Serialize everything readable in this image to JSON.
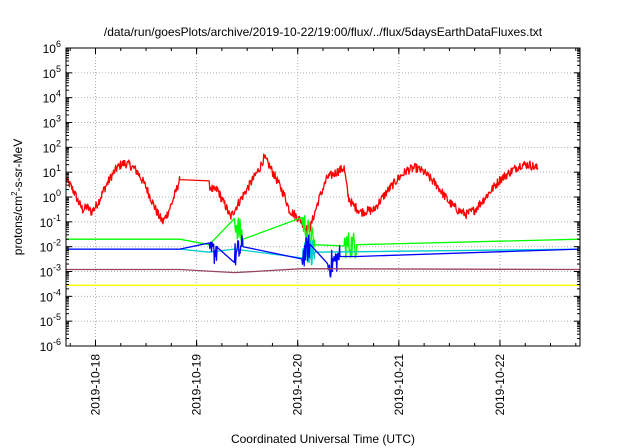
{
  "chart_data": {
    "type": "line",
    "title": "/data/run/goesPlots/archive/2019-10-22/19:00/flux/../flux/5daysEarthDataFluxes.txt",
    "xlabel": "Coordinated Universal Time (UTC)",
    "ylabel_base": "protons/cm",
    "ylabel_sup": "2",
    "ylabel_rest": "-s-sr-MeV",
    "y_scale": "log",
    "ylim": [
      1e-06,
      1000000.0
    ],
    "y_ticks": [
      {
        "value": 1000000.0,
        "base": "10",
        "exp": "6"
      },
      {
        "value": 100000.0,
        "base": "10",
        "exp": "5"
      },
      {
        "value": 10000.0,
        "base": "10",
        "exp": "4"
      },
      {
        "value": 1000.0,
        "base": "10",
        "exp": "3"
      },
      {
        "value": 100.0,
        "base": "10",
        "exp": "2"
      },
      {
        "value": 10.0,
        "base": "10",
        "exp": "1"
      },
      {
        "value": 1,
        "base": "10",
        "exp": "0"
      },
      {
        "value": 0.1,
        "base": "10",
        "exp": "-1"
      },
      {
        "value": 0.01,
        "base": "10",
        "exp": "-2"
      },
      {
        "value": 0.001,
        "base": "10",
        "exp": "-3"
      },
      {
        "value": 0.0001,
        "base": "10",
        "exp": "-4"
      },
      {
        "value": 1e-05,
        "base": "10",
        "exp": "-5"
      },
      {
        "value": 1e-06,
        "base": "10",
        "exp": "-6"
      }
    ],
    "xlim": [
      "2019-10-17T17:00",
      "2019-10-22T19:00"
    ],
    "x_ticks": [
      {
        "value": "2019-10-18T00:00",
        "label": "2019-10-18"
      },
      {
        "value": "2019-10-19T00:00",
        "label": "2019-10-19"
      },
      {
        "value": "2019-10-20T00:00",
        "label": "2019-10-20"
      },
      {
        "value": "2019-10-21T00:00",
        "label": "2019-10-21"
      },
      {
        "value": "2019-10-22T00:00",
        "label": "2019-10-22"
      }
    ],
    "grid": true,
    "series": [
      {
        "color": "#ffff00",
        "style": "flat",
        "points": [
          [
            "2019-10-17T17:00",
            0.00028
          ],
          [
            "2019-10-22T19:00",
            0.00028
          ]
        ]
      },
      {
        "color": "#ff0000",
        "style": "noisy",
        "points": [
          [
            "2019-10-17T17:00",
            5
          ],
          [
            "2019-10-17T18:00",
            3
          ],
          [
            "2019-10-17T19:00",
            1.5
          ],
          [
            "2019-10-17T20:00",
            0.6
          ],
          [
            "2019-10-17T21:00",
            0.3
          ],
          [
            "2019-10-17T22:00",
            0.4
          ],
          [
            "2019-10-17T23:00",
            0.25
          ],
          [
            "2019-10-18T00:00",
            0.4
          ],
          [
            "2019-10-18T01:00",
            0.8
          ],
          [
            "2019-10-18T02:00",
            2
          ],
          [
            "2019-10-18T03:00",
            4
          ],
          [
            "2019-10-18T04:00",
            8
          ],
          [
            "2019-10-18T05:00",
            14
          ],
          [
            "2019-10-18T06:00",
            20
          ],
          [
            "2019-10-18T07:00",
            23
          ],
          [
            "2019-10-18T08:00",
            20
          ],
          [
            "2019-10-18T09:00",
            15
          ],
          [
            "2019-10-18T10:00",
            10
          ],
          [
            "2019-10-18T11:00",
            5
          ],
          [
            "2019-10-18T12:00",
            2.5
          ],
          [
            "2019-10-18T13:00",
            1
          ],
          [
            "2019-10-18T14:00",
            0.4
          ],
          [
            "2019-10-18T15:00",
            0.18
          ],
          [
            "2019-10-18T16:00",
            0.1
          ],
          [
            "2019-10-18T17:00",
            0.2
          ],
          [
            "2019-10-18T18:00",
            0.5
          ],
          [
            "2019-10-18T19:00",
            1.5
          ],
          [
            "2019-10-18T20:00",
            5
          ],
          [
            "2019-10-19T03:00",
            3
          ],
          [
            "2019-10-19T04:00",
            1.8
          ],
          [
            "2019-10-19T05:00",
            2
          ],
          [
            "2019-10-19T06:00",
            0.8
          ],
          [
            "2019-10-19T07:00",
            0.4
          ],
          [
            "2019-10-19T08:00",
            0.15
          ],
          [
            "2019-10-19T09:00",
            0.3
          ],
          [
            "2019-10-19T10:00",
            0.6
          ],
          [
            "2019-10-19T13:00",
            4
          ],
          [
            "2019-10-19T15:00",
            15
          ],
          [
            "2019-10-19T16:00",
            38
          ],
          [
            "2019-10-19T17:00",
            22
          ],
          [
            "2019-10-19T19:00",
            5
          ],
          [
            "2019-10-19T21:00",
            1
          ],
          [
            "2019-10-19T22:00",
            0.3
          ],
          [
            "2019-10-20T00:00",
            0.15
          ],
          [
            "2019-10-20T01:00",
            0.1
          ],
          [
            "2019-10-20T02:00",
            0.05
          ],
          [
            "2019-10-20T03:00",
            0.06
          ],
          [
            "2019-10-20T05:00",
            0.8
          ],
          [
            "2019-10-20T07:00",
            6
          ],
          [
            "2019-10-20T10:00",
            12
          ],
          [
            "2019-10-20T11:00",
            15
          ],
          [
            "2019-10-20T12:00",
            1
          ],
          [
            "2019-10-20T13:00",
            0.5
          ],
          [
            "2019-10-20T15:00",
            0.25
          ],
          [
            "2019-10-20T18:00",
            0.3
          ],
          [
            "2019-10-20T21:00",
            1.5
          ],
          [
            "2019-10-21T00:00",
            6
          ],
          [
            "2019-10-21T02:00",
            12
          ],
          [
            "2019-10-21T04:00",
            15
          ],
          [
            "2019-10-21T06:00",
            10
          ],
          [
            "2019-10-21T09:00",
            3
          ],
          [
            "2019-10-21T12:00",
            0.6
          ],
          [
            "2019-10-21T14:00",
            0.3
          ],
          [
            "2019-10-21T16:00",
            0.2
          ],
          [
            "2019-10-21T18:00",
            0.3
          ],
          [
            "2019-10-21T21:00",
            1.2
          ],
          [
            "2019-10-22T00:00",
            5
          ],
          [
            "2019-10-22T03:00",
            12
          ],
          [
            "2019-10-22T05:00",
            20
          ],
          [
            "2019-10-22T07:00",
            20
          ],
          [
            "2019-10-22T09:00",
            14
          ]
        ]
      },
      {
        "color": "#00ff00",
        "style": "noisy",
        "points": [
          [
            "2019-10-17T17:00",
            0.02
          ],
          [
            "2019-10-18T20:00",
            0.02
          ],
          [
            "2019-10-19T03:00",
            0.012
          ],
          [
            "2019-10-19T09:00",
            0.12
          ],
          [
            "2019-10-19T11:00",
            0.02
          ],
          [
            "2019-10-20T01:00",
            0.12
          ],
          [
            "2019-10-20T04:00",
            0.012
          ],
          [
            "2019-10-20T11:00",
            0.012
          ],
          [
            "2019-10-20T14:00",
            0.012
          ],
          [
            "2019-10-22T19:00",
            0.02
          ]
        ]
      },
      {
        "color": "#00cccc",
        "style": "noisy",
        "points": [
          [
            "2019-10-17T17:00",
            0.008
          ],
          [
            "2019-10-18T20:00",
            0.008
          ],
          [
            "2019-10-19T03:00",
            0.006
          ],
          [
            "2019-10-19T09:00",
            0.008
          ],
          [
            "2019-10-20T01:00",
            0.008
          ],
          [
            "2019-10-20T04:00",
            0.006
          ],
          [
            "2019-10-22T19:00",
            0.008
          ]
        ]
      },
      {
        "color": "#0000ff",
        "style": "noisy",
        "points": [
          [
            "2019-10-17T17:00",
            0.008
          ],
          [
            "2019-10-18T20:00",
            0.008
          ],
          [
            "2019-10-19T03:00",
            0.004
          ],
          [
            "2019-10-19T05:00",
            0.009
          ],
          [
            "2019-10-19T09:00",
            0.004
          ],
          [
            "2019-10-19T11:00",
            0.01
          ],
          [
            "2019-10-20T01:00",
            0.004
          ],
          [
            "2019-10-20T03:00",
            0.012
          ],
          [
            "2019-10-20T07:00",
            0.0015
          ],
          [
            "2019-10-20T10:00",
            0.004
          ],
          [
            "2019-10-20T14:00",
            0.004
          ],
          [
            "2019-10-22T19:00",
            0.008
          ]
        ]
      },
      {
        "color": "#994466",
        "style": "noisy",
        "points": [
          [
            "2019-10-17T17:00",
            0.0012
          ],
          [
            "2019-10-18T20:00",
            0.0012
          ],
          [
            "2019-10-19T09:00",
            0.0009
          ],
          [
            "2019-10-20T01:00",
            0.0013
          ],
          [
            "2019-10-22T19:00",
            0.0012
          ]
        ]
      }
    ]
  }
}
